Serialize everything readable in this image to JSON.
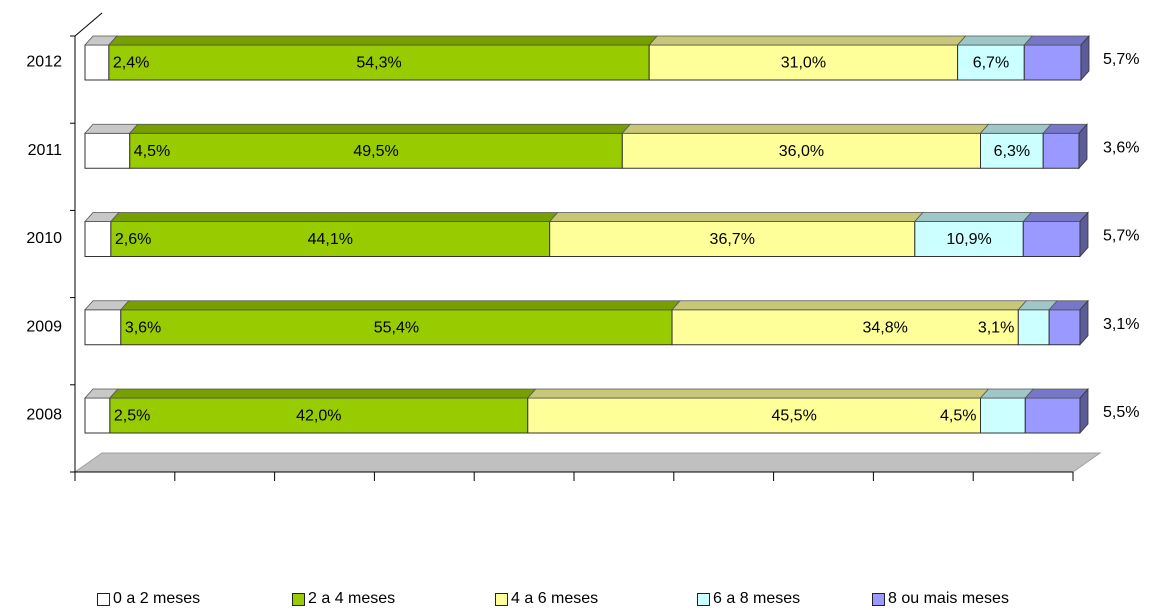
{
  "chart_data": {
    "type": "bar",
    "orientation": "horizontal",
    "stacked": true,
    "percent_stacked": true,
    "three_d": true,
    "categories": [
      "2012",
      "2011",
      "2010",
      "2009",
      "2008"
    ],
    "series": [
      {
        "name": "0 a 2 meses",
        "color": "#ffffff",
        "values": [
          2.4,
          4.5,
          2.6,
          3.6,
          2.5
        ],
        "labels": [
          "2,4%",
          "4,5%",
          "2,6%",
          "3,6%",
          "2,5%"
        ]
      },
      {
        "name": "2 a 4 meses",
        "color": "#99cc00",
        "values": [
          54.3,
          49.5,
          44.1,
          55.4,
          42.0
        ],
        "labels": [
          "54,3%",
          "49,5%",
          "44,1%",
          "55,4%",
          "42,0%"
        ]
      },
      {
        "name": "4 a 6 meses",
        "color": "#ffff99",
        "values": [
          31.0,
          36.0,
          36.7,
          34.8,
          45.5
        ],
        "labels": [
          "31,0%",
          "36,0%",
          "36,7%",
          "34,8%",
          "45,5%"
        ]
      },
      {
        "name": "6 a 8 meses",
        "color": "#ccffff",
        "values": [
          6.7,
          6.3,
          10.9,
          3.1,
          4.5
        ],
        "labels": [
          "6,7%",
          "6,3%",
          "10,9%",
          "3,1%",
          "4,5%"
        ]
      },
      {
        "name": "8 ou mais meses",
        "color": "#9999ff",
        "values": [
          5.7,
          3.6,
          5.7,
          3.1,
          5.5
        ],
        "labels": [
          "5,7%",
          "3,6%",
          "5,7%",
          "3,1%",
          "5,5%"
        ]
      }
    ],
    "xlim": [
      0,
      100
    ],
    "legend_position": "bottom",
    "grid": false
  }
}
